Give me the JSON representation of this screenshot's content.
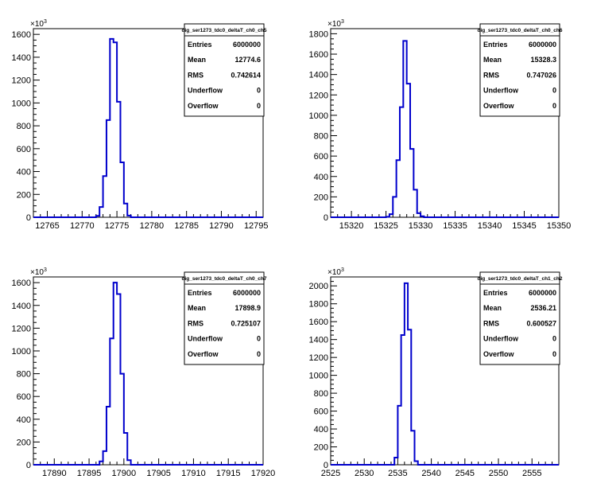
{
  "chart_data": [
    {
      "type": "histogram",
      "title": "dig_ser1273_tdc0_deltaT_ch0_ch5",
      "xlim": [
        12763,
        12796
      ],
      "ylim": [
        0,
        1650
      ],
      "y_multiplier_label": "×10",
      "y_multiplier_exp": "3",
      "x_ticks": [
        12765,
        12770,
        12775,
        12780,
        12785,
        12790,
        12795
      ],
      "y_ticks": [
        0,
        200,
        400,
        600,
        800,
        1000,
        1200,
        1400,
        1600
      ],
      "bin_width": 0.5,
      "bins_low": [
        12771.5,
        12772.0,
        12772.5,
        12773.0,
        12773.5,
        12774.0,
        12774.5,
        12775.0,
        12775.5,
        12776.0,
        12776.5
      ],
      "values": [
        0,
        12,
        90,
        360,
        850,
        1560,
        1530,
        1010,
        480,
        120,
        15
      ],
      "stats": [
        {
          "label": "Entries",
          "value": "6000000"
        },
        {
          "label": "Mean",
          "value": "12774.6"
        },
        {
          "label": "RMS",
          "value": "0.742614"
        },
        {
          "label": "Underflow",
          "value": "0"
        },
        {
          "label": "Overflow",
          "value": "0"
        }
      ]
    },
    {
      "type": "histogram",
      "title": "dig_ser1273_tdc0_deltaT_ch0_ch6",
      "xlim": [
        15317,
        15350
      ],
      "ylim": [
        0,
        1850
      ],
      "y_multiplier_label": "×10",
      "y_multiplier_exp": "3",
      "x_ticks": [
        15320,
        15325,
        15330,
        15335,
        15340,
        15345,
        15350
      ],
      "y_ticks": [
        0,
        200,
        400,
        600,
        800,
        1000,
        1200,
        1400,
        1600,
        1800
      ],
      "bin_width": 0.5,
      "bins_low": [
        15325.0,
        15325.5,
        15326.0,
        15326.5,
        15327.0,
        15327.5,
        15328.0,
        15328.5,
        15329.0,
        15329.5,
        15330.0
      ],
      "values": [
        5,
        30,
        200,
        560,
        1080,
        1730,
        1310,
        670,
        270,
        40,
        10
      ],
      "stats": [
        {
          "label": "Entries",
          "value": "6000000"
        },
        {
          "label": "Mean",
          "value": "15328.3"
        },
        {
          "label": "RMS",
          "value": "0.747026"
        },
        {
          "label": "Underflow",
          "value": "0"
        },
        {
          "label": "Overflow",
          "value": "0"
        }
      ]
    },
    {
      "type": "histogram",
      "title": "dig_ser1273_tdc0_deltaT_ch0_ch7",
      "xlim": [
        17887,
        17920
      ],
      "ylim": [
        0,
        1650
      ],
      "y_multiplier_label": "×10",
      "y_multiplier_exp": "3",
      "x_ticks": [
        17890,
        17895,
        17900,
        17905,
        17910,
        17915,
        17920
      ],
      "y_ticks": [
        0,
        200,
        400,
        600,
        800,
        1000,
        1200,
        1400,
        1600
      ],
      "bin_width": 0.5,
      "bins_low": [
        17896.5,
        17897.0,
        17897.5,
        17898.0,
        17898.5,
        17899.0,
        17899.5,
        17900.0,
        17900.5
      ],
      "values": [
        30,
        120,
        510,
        1110,
        1600,
        1500,
        800,
        280,
        40
      ],
      "stats": [
        {
          "label": "Entries",
          "value": "6000000"
        },
        {
          "label": "Mean",
          "value": "17898.9"
        },
        {
          "label": "RMS",
          "value": "0.725107"
        },
        {
          "label": "Underflow",
          "value": "0"
        },
        {
          "label": "Overflow",
          "value": "0"
        }
      ]
    },
    {
      "type": "histogram",
      "title": "dig_ser1273_tdc0_deltaT_ch1_ch2",
      "xlim": [
        2525,
        2559
      ],
      "ylim": [
        0,
        2100
      ],
      "y_multiplier_label": "×10",
      "y_multiplier_exp": "3",
      "x_ticks": [
        2525,
        2530,
        2535,
        2540,
        2545,
        2550,
        2555
      ],
      "y_ticks": [
        0,
        200,
        400,
        600,
        800,
        1000,
        1200,
        1400,
        1600,
        1800,
        2000
      ],
      "bin_width": 0.5,
      "bins_low": [
        2534.5,
        2535.0,
        2535.5,
        2536.0,
        2536.5,
        2537.0,
        2537.5
      ],
      "values": [
        80,
        660,
        1450,
        2030,
        1510,
        380,
        40
      ],
      "stats": [
        {
          "label": "Entries",
          "value": "6000000"
        },
        {
          "label": "Mean",
          "value": "2536.21"
        },
        {
          "label": "RMS",
          "value": "0.600527"
        },
        {
          "label": "Underflow",
          "value": "0"
        },
        {
          "label": "Overflow",
          "value": "0"
        }
      ]
    }
  ],
  "colors": {
    "histogram_line": "#0000cc",
    "axis": "#000000",
    "background": "#ffffff"
  }
}
